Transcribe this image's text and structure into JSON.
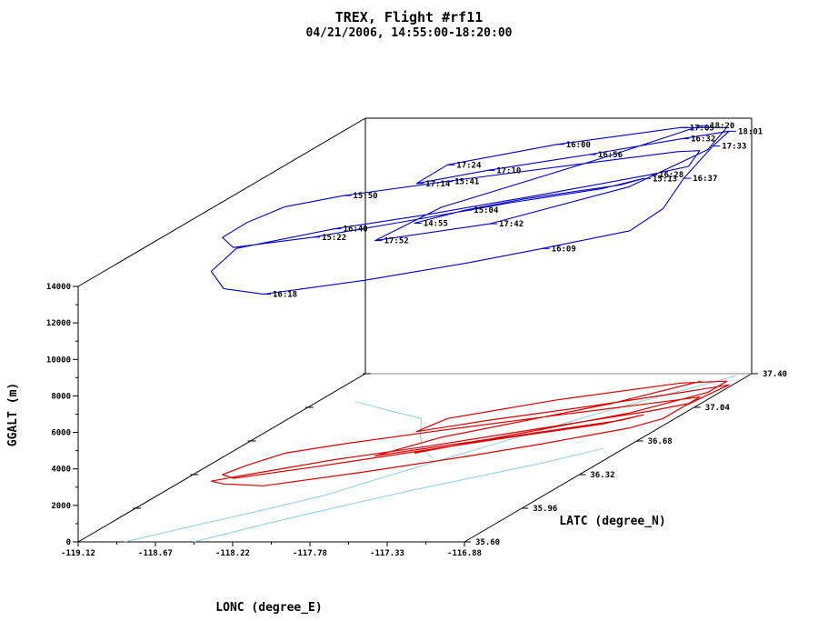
{
  "chart_data": {
    "type": "line3d",
    "title": "TREX, Flight #rf11",
    "subtitle": "04/21/2006, 14:55:00-18:20:00",
    "xlabel": "LONC (degree_E)",
    "ylabel": "LATC (degree_N)",
    "zlabel": "GGALT (m)",
    "xlim": [
      -119.12,
      -116.88
    ],
    "ylim": [
      35.6,
      37.4
    ],
    "zlim": [
      0,
      14000
    ],
    "x_ticks": [
      "-119.12",
      "-118.67",
      "-118.22",
      "-117.78",
      "-117.33",
      "-116.88"
    ],
    "y_ticks": [
      "35.60",
      "35.96",
      "36.32",
      "36.68",
      "37.04",
      "37.40"
    ],
    "z_ticks": [
      "0",
      "2000",
      "4000",
      "6000",
      "8000",
      "10000",
      "12000",
      "14000"
    ],
    "colors": {
      "track": "#0000cc",
      "ground_track": "#dd0000",
      "terrain_lines": "#87ceeb",
      "frame": "#000000"
    },
    "flight_track": [
      {
        "x": -118.05,
        "y": 36.55,
        "z": 12600,
        "time": "14:55"
      },
      {
        "x": -117.85,
        "y": 36.65,
        "z": 12800,
        "time": "15:04"
      },
      {
        "x": -117.6,
        "y": 36.75,
        "z": 12900
      },
      {
        "x": -117.35,
        "y": 36.84,
        "z": 12900
      },
      {
        "x": -117.18,
        "y": 36.9,
        "z": 12900
      },
      {
        "x": -117.1,
        "y": 36.96,
        "z": 12950,
        "time": "15:13"
      },
      {
        "x": -117.25,
        "y": 36.86,
        "z": 12900
      },
      {
        "x": -117.65,
        "y": 36.72,
        "z": 12850
      },
      {
        "x": -118.1,
        "y": 36.55,
        "z": 12700
      },
      {
        "x": -118.5,
        "y": 36.4,
        "z": 12600,
        "time": "15:22"
      },
      {
        "x": -118.85,
        "y": 36.28,
        "z": 12650
      },
      {
        "x": -118.95,
        "y": 36.32,
        "z": 13000
      },
      {
        "x": -118.9,
        "y": 36.42,
        "z": 13300
      },
      {
        "x": -118.8,
        "y": 36.55,
        "z": 13500
      },
      {
        "x": -118.55,
        "y": 36.65,
        "z": 13600,
        "time": "15:50"
      },
      {
        "x": -118.1,
        "y": 36.8,
        "z": 13600,
        "time": "15:41"
      },
      {
        "x": -117.55,
        "y": 36.97,
        "z": 13600
      },
      {
        "x": -117.05,
        "y": 37.12,
        "z": 13600
      },
      {
        "x": -116.95,
        "y": 37.15,
        "z": 13500
      },
      {
        "x": -116.95,
        "y": 37.08,
        "z": 13000
      },
      {
        "x": -117.1,
        "y": 37.0,
        "z": 12950,
        "time": "16:28"
      },
      {
        "x": -117.55,
        "y": 36.82,
        "z": 12800
      },
      {
        "x": -118.05,
        "y": 36.62,
        "z": 12700
      },
      {
        "x": -118.45,
        "y": 36.48,
        "z": 12650,
        "time": "16:40"
      },
      {
        "x": -118.85,
        "y": 36.3,
        "z": 12500
      },
      {
        "x": -118.95,
        "y": 36.25,
        "z": 11500
      },
      {
        "x": -118.85,
        "y": 36.22,
        "z": 10700
      },
      {
        "x": -118.6,
        "y": 36.2,
        "z": 10500,
        "time": "16:18"
      },
      {
        "x": -118.15,
        "y": 36.35,
        "z": 10500
      },
      {
        "x": -117.7,
        "y": 36.52,
        "z": 10600
      },
      {
        "x": -117.4,
        "y": 36.65,
        "z": 10700,
        "time": "16:09"
      },
      {
        "x": -117.05,
        "y": 36.82,
        "z": 10800
      },
      {
        "x": -116.95,
        "y": 36.92,
        "z": 11500
      },
      {
        "x": -116.95,
        "y": 37.05,
        "z": 12500,
        "time": "16:37"
      },
      {
        "x": -116.92,
        "y": 37.2,
        "z": 13500,
        "time": "17:33"
      },
      {
        "x": -116.9,
        "y": 37.28,
        "z": 13900,
        "time": "18:01"
      },
      {
        "x": -117.1,
        "y": 37.2,
        "z": 13900,
        "time": "16:32"
      },
      {
        "x": -117.5,
        "y": 37.05,
        "z": 13800,
        "time": "16:56"
      },
      {
        "x": -117.95,
        "y": 36.9,
        "z": 13700,
        "time": "17:10"
      },
      {
        "x": -118.25,
        "y": 36.78,
        "z": 13600,
        "time": "17:14"
      },
      {
        "x": -118.2,
        "y": 36.92,
        "z": 13900,
        "time": "17:24"
      },
      {
        "x": -117.75,
        "y": 37.12,
        "z": 14000,
        "time": "16:00"
      },
      {
        "x": -117.2,
        "y": 37.3,
        "z": 14000,
        "time": "17:05"
      },
      {
        "x": -116.95,
        "y": 37.32,
        "z": 13900
      },
      {
        "x": -116.95,
        "y": 37.2,
        "z": 13300
      },
      {
        "x": -117.2,
        "y": 36.98,
        "z": 12400
      },
      {
        "x": -117.75,
        "y": 36.7,
        "z": 11800,
        "time": "17:42"
      },
      {
        "x": -118.25,
        "y": 36.52,
        "z": 11800,
        "time": "17:52"
      },
      {
        "x": -118.05,
        "y": 36.72,
        "z": 12600
      },
      {
        "x": -117.4,
        "y": 37.08,
        "z": 13600
      },
      {
        "x": -117.1,
        "y": 37.32,
        "z": 14000,
        "time": "18:20"
      }
    ],
    "time_labels": [
      "18:20",
      "17:05",
      "15:04",
      "18:01",
      "16:00",
      "16:32",
      "17:33",
      "17:24",
      "17:10",
      "15:41",
      "16:37",
      "14:55",
      "16:56",
      "17:14",
      "15:13",
      "16:28",
      "16:09",
      "15:50",
      "16:40",
      "15:22",
      "17:52",
      "17:42",
      "16:18"
    ]
  }
}
